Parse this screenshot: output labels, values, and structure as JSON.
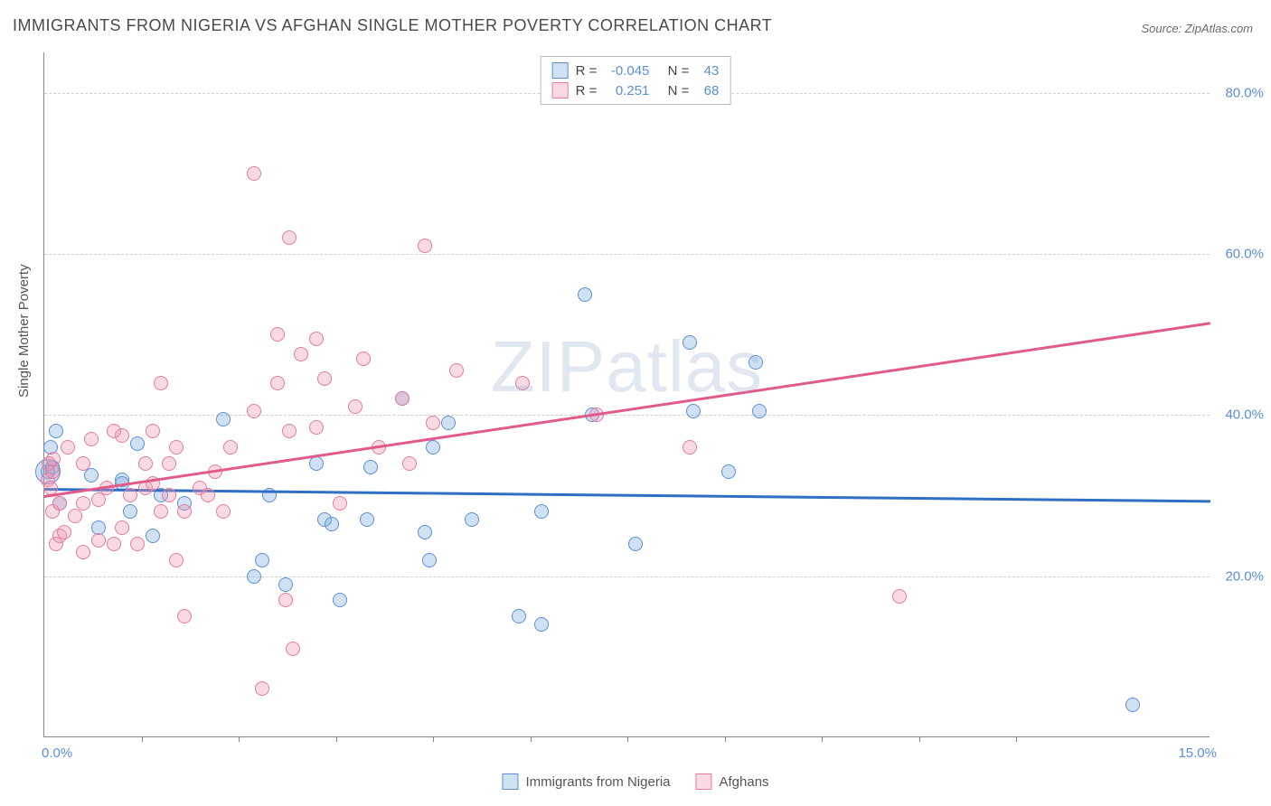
{
  "title": "IMMIGRANTS FROM NIGERIA VS AFGHAN SINGLE MOTHER POVERTY CORRELATION CHART",
  "source": "Source: ZipAtlas.com",
  "y_axis_label": "Single Mother Poverty",
  "watermark": {
    "bold": "ZIP",
    "light": "atlas"
  },
  "chart": {
    "type": "scatter",
    "xlim": [
      0,
      15
    ],
    "ylim": [
      0,
      85
    ],
    "x_min_label": "0.0%",
    "x_max_label": "15.0%",
    "y_ticks": [
      20,
      40,
      60,
      80
    ],
    "y_tick_labels": [
      "20.0%",
      "40.0%",
      "60.0%",
      "80.0%"
    ],
    "x_tick_positions": [
      1.25,
      2.5,
      3.75,
      5.0,
      6.25,
      7.5,
      8.75,
      10.0,
      11.25,
      12.5
    ],
    "background_color": "#ffffff",
    "grid_color": "#d0d0d0",
    "axis_color": "#888888",
    "tick_label_color": "#5a8fd6",
    "marker_radius": 8,
    "marker_stroke_width": 1.2,
    "trendline_width": 3
  },
  "series": [
    {
      "name": "Immigrants from Nigeria",
      "fill": "rgba(122,168,224,0.35)",
      "stroke": "#5a8fd6",
      "line_color": "#2f6fc4",
      "R": "-0.045",
      "N": "43",
      "trend": {
        "x1": 0,
        "y1": 31.0,
        "x2": 15,
        "y2": 29.5
      },
      "points": [
        [
          0.05,
          33
        ],
        [
          0.08,
          36
        ],
        [
          0.1,
          33.5
        ],
        [
          0.15,
          38
        ],
        [
          0.2,
          29
        ],
        [
          0.6,
          32.5
        ],
        [
          0.7,
          26
        ],
        [
          1.0,
          32
        ],
        [
          1.0,
          31.5
        ],
        [
          1.1,
          28
        ],
        [
          1.2,
          36.5
        ],
        [
          1.4,
          25
        ],
        [
          1.5,
          30
        ],
        [
          1.8,
          29
        ],
        [
          2.3,
          39.5
        ],
        [
          2.7,
          20
        ],
        [
          2.8,
          22
        ],
        [
          2.9,
          30
        ],
        [
          3.1,
          19
        ],
        [
          3.5,
          34
        ],
        [
          3.6,
          27
        ],
        [
          3.7,
          26.5
        ],
        [
          3.8,
          17
        ],
        [
          4.15,
          27
        ],
        [
          4.2,
          33.5
        ],
        [
          4.6,
          42
        ],
        [
          4.9,
          25.5
        ],
        [
          4.95,
          22
        ],
        [
          5.0,
          36
        ],
        [
          5.2,
          39
        ],
        [
          5.5,
          27
        ],
        [
          6.1,
          15
        ],
        [
          6.4,
          14
        ],
        [
          6.4,
          28
        ],
        [
          6.95,
          55
        ],
        [
          7.05,
          40
        ],
        [
          7.6,
          24
        ],
        [
          8.3,
          49
        ],
        [
          8.35,
          40.5
        ],
        [
          8.8,
          33
        ],
        [
          9.15,
          46.5
        ],
        [
          9.2,
          40.5
        ],
        [
          14.0,
          4
        ]
      ],
      "large_points": [
        [
          0.05,
          33,
          14
        ]
      ]
    },
    {
      "name": "Afghans",
      "fill": "rgba(238,148,176,0.35)",
      "stroke": "#e77aa0",
      "line_color": "#e15a8a",
      "R": "0.251",
      "N": "68",
      "trend": {
        "x1": 0,
        "y1": 30.0,
        "x2": 15,
        "y2": 51.5
      },
      "points": [
        [
          0.05,
          32
        ],
        [
          0.06,
          34
        ],
        [
          0.08,
          31
        ],
        [
          0.1,
          28
        ],
        [
          0.1,
          33
        ],
        [
          0.12,
          34.5
        ],
        [
          0.15,
          24
        ],
        [
          0.2,
          25
        ],
        [
          0.2,
          29
        ],
        [
          0.25,
          25.5
        ],
        [
          0.3,
          36
        ],
        [
          0.4,
          27.5
        ],
        [
          0.5,
          29
        ],
        [
          0.5,
          23
        ],
        [
          0.5,
          34
        ],
        [
          0.6,
          37
        ],
        [
          0.7,
          29.5
        ],
        [
          0.7,
          24.5
        ],
        [
          0.8,
          31
        ],
        [
          0.9,
          24
        ],
        [
          0.9,
          38
        ],
        [
          1.0,
          37.5
        ],
        [
          1.0,
          26
        ],
        [
          1.1,
          30
        ],
        [
          1.2,
          24
        ],
        [
          1.3,
          34
        ],
        [
          1.3,
          31
        ],
        [
          1.4,
          31.5
        ],
        [
          1.4,
          38
        ],
        [
          1.5,
          44
        ],
        [
          1.5,
          28
        ],
        [
          1.6,
          34
        ],
        [
          1.6,
          30
        ],
        [
          1.7,
          36
        ],
        [
          1.7,
          22
        ],
        [
          1.8,
          28
        ],
        [
          1.8,
          15
        ],
        [
          2.0,
          31
        ],
        [
          2.1,
          30
        ],
        [
          2.2,
          33
        ],
        [
          2.3,
          28
        ],
        [
          2.4,
          36
        ],
        [
          2.7,
          40.5
        ],
        [
          2.7,
          70
        ],
        [
          2.8,
          6
        ],
        [
          3.0,
          50
        ],
        [
          3.0,
          44
        ],
        [
          3.1,
          17
        ],
        [
          3.15,
          62
        ],
        [
          3.15,
          38
        ],
        [
          3.2,
          11
        ],
        [
          3.3,
          47.5
        ],
        [
          3.5,
          49.5
        ],
        [
          3.5,
          38.5
        ],
        [
          3.6,
          44.5
        ],
        [
          3.8,
          29
        ],
        [
          4.0,
          41
        ],
        [
          4.1,
          47
        ],
        [
          4.3,
          36
        ],
        [
          4.6,
          42
        ],
        [
          4.7,
          34
        ],
        [
          4.9,
          61
        ],
        [
          5.0,
          39
        ],
        [
          5.3,
          45.5
        ],
        [
          6.15,
          44
        ],
        [
          7.1,
          40
        ],
        [
          8.3,
          36
        ],
        [
          11.0,
          17.5
        ]
      ]
    }
  ],
  "legend_top": {
    "r_label": "R =",
    "n_label": "N ="
  },
  "legend_bottom": [
    {
      "label": "Immigrants from Nigeria",
      "fill": "rgba(122,168,224,0.35)",
      "stroke": "#5a8fd6"
    },
    {
      "label": "Afghans",
      "fill": "rgba(238,148,176,0.35)",
      "stroke": "#e77aa0"
    }
  ]
}
